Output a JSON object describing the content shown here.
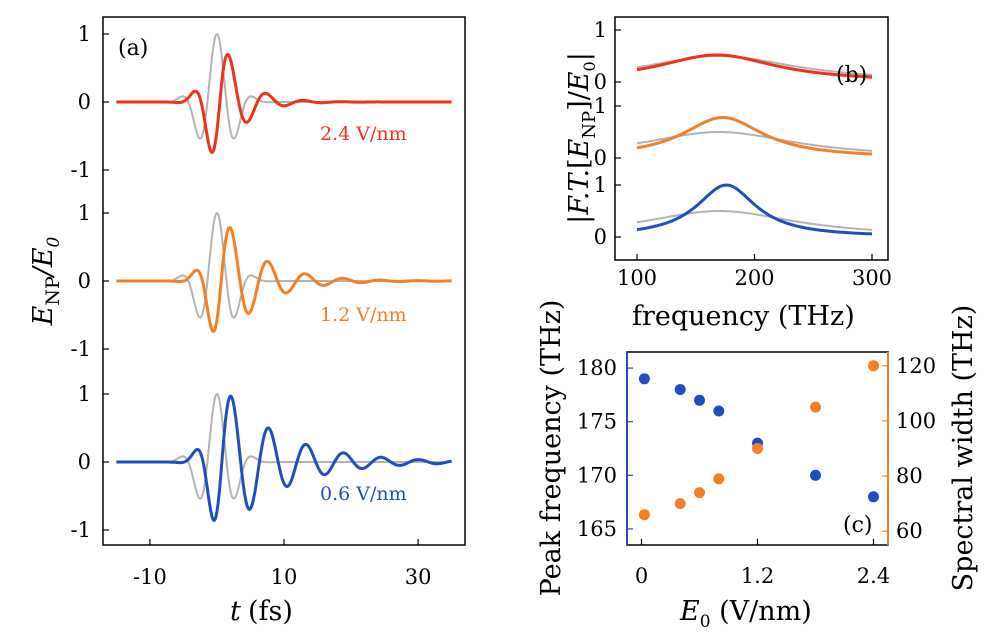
{
  "colors": {
    "red": "#f0321a",
    "orange": "#f58023",
    "blue": "#1f4fbf",
    "gray": "#b3b3b3",
    "axis": "#000000"
  },
  "chart_data": [
    {
      "type": "line",
      "panel": "(a)",
      "xlabel": "t (fs)",
      "ylabel": "E_NP/E_0",
      "xlim": [
        -17,
        37
      ],
      "xticks": [
        "-10",
        "10",
        "30"
      ],
      "ylim_each": [
        -1.15,
        1.15
      ],
      "yticks": [
        "1",
        "0",
        "-1"
      ],
      "reference_pulse": {
        "center": 0,
        "carrier_period": 5.7,
        "gauss_width": 2.4,
        "amplitude": 1.0,
        "color": "gray"
      },
      "series": [
        {
          "name": "2.4 V/nm",
          "label": "2.4 V/nm",
          "color": "red",
          "amplitude": 0.95,
          "phase_shift_fs": 0.7,
          "decay_fs": 3.3
        },
        {
          "name": "1.2 V/nm",
          "label": "1.2 V/nm",
          "color": "orange",
          "amplitude": 0.95,
          "phase_shift_fs": 0.9,
          "decay_fs": 5.6
        },
        {
          "name": "0.6 V/nm",
          "label": "0.6 V/nm",
          "color": "blue",
          "amplitude": 1.1,
          "phase_shift_fs": 1.0,
          "decay_fs": 8.5
        }
      ]
    },
    {
      "type": "line",
      "panel": "(b)",
      "xlabel": "frequency (THz)",
      "ylabel": "|F.T.[E_NP]/E_0|",
      "xlim": [
        100,
        300
      ],
      "xticks": [
        "100",
        "200",
        "300"
      ],
      "yticks": [
        "1",
        "0"
      ],
      "reference_spectrum": {
        "peak": 170,
        "amplitude": 0.5,
        "width_thz": 50,
        "color": "gray"
      },
      "series": [
        {
          "name": "2.4 V/nm",
          "color": "red",
          "peak_thz": 168,
          "amplitude": 0.52,
          "width_thz": 62
        },
        {
          "name": "1.2 V/nm",
          "color": "orange",
          "peak_thz": 173,
          "amplitude": 0.78,
          "width_thz": 42
        },
        {
          "name": "0.6 V/nm",
          "color": "blue",
          "peak_thz": 176,
          "amplitude": 1.0,
          "width_thz": 31
        }
      ]
    },
    {
      "type": "scatter",
      "panel": "(c)",
      "xlabel": "E_0 (V/nm)",
      "ylabel_left": "Peak frequency (THz)",
      "ylabel_right": "Spectral width (THz)",
      "xlim": [
        -0.15,
        2.55
      ],
      "xticks": [
        "0",
        "1.2",
        "2.4"
      ],
      "ylim_left": [
        163.5,
        181.5
      ],
      "yticks_left": [
        "180",
        "175",
        "170",
        "165"
      ],
      "ylim_right": [
        55,
        125
      ],
      "yticks_right": [
        "120",
        "100",
        "80",
        "60"
      ],
      "series": [
        {
          "name": "Peak frequency",
          "axis": "left",
          "color": "blue",
          "x": [
            0.03,
            0.4,
            0.6,
            0.8,
            1.2,
            1.8,
            2.4
          ],
          "y": [
            179,
            178,
            177,
            176,
            173,
            170,
            168
          ]
        },
        {
          "name": "Spectral width",
          "axis": "right",
          "color": "orange",
          "x": [
            0.03,
            0.4,
            0.6,
            0.8,
            1.2,
            1.8,
            2.4
          ],
          "y": [
            66,
            70,
            74,
            79,
            90,
            105,
            120
          ]
        }
      ]
    }
  ]
}
